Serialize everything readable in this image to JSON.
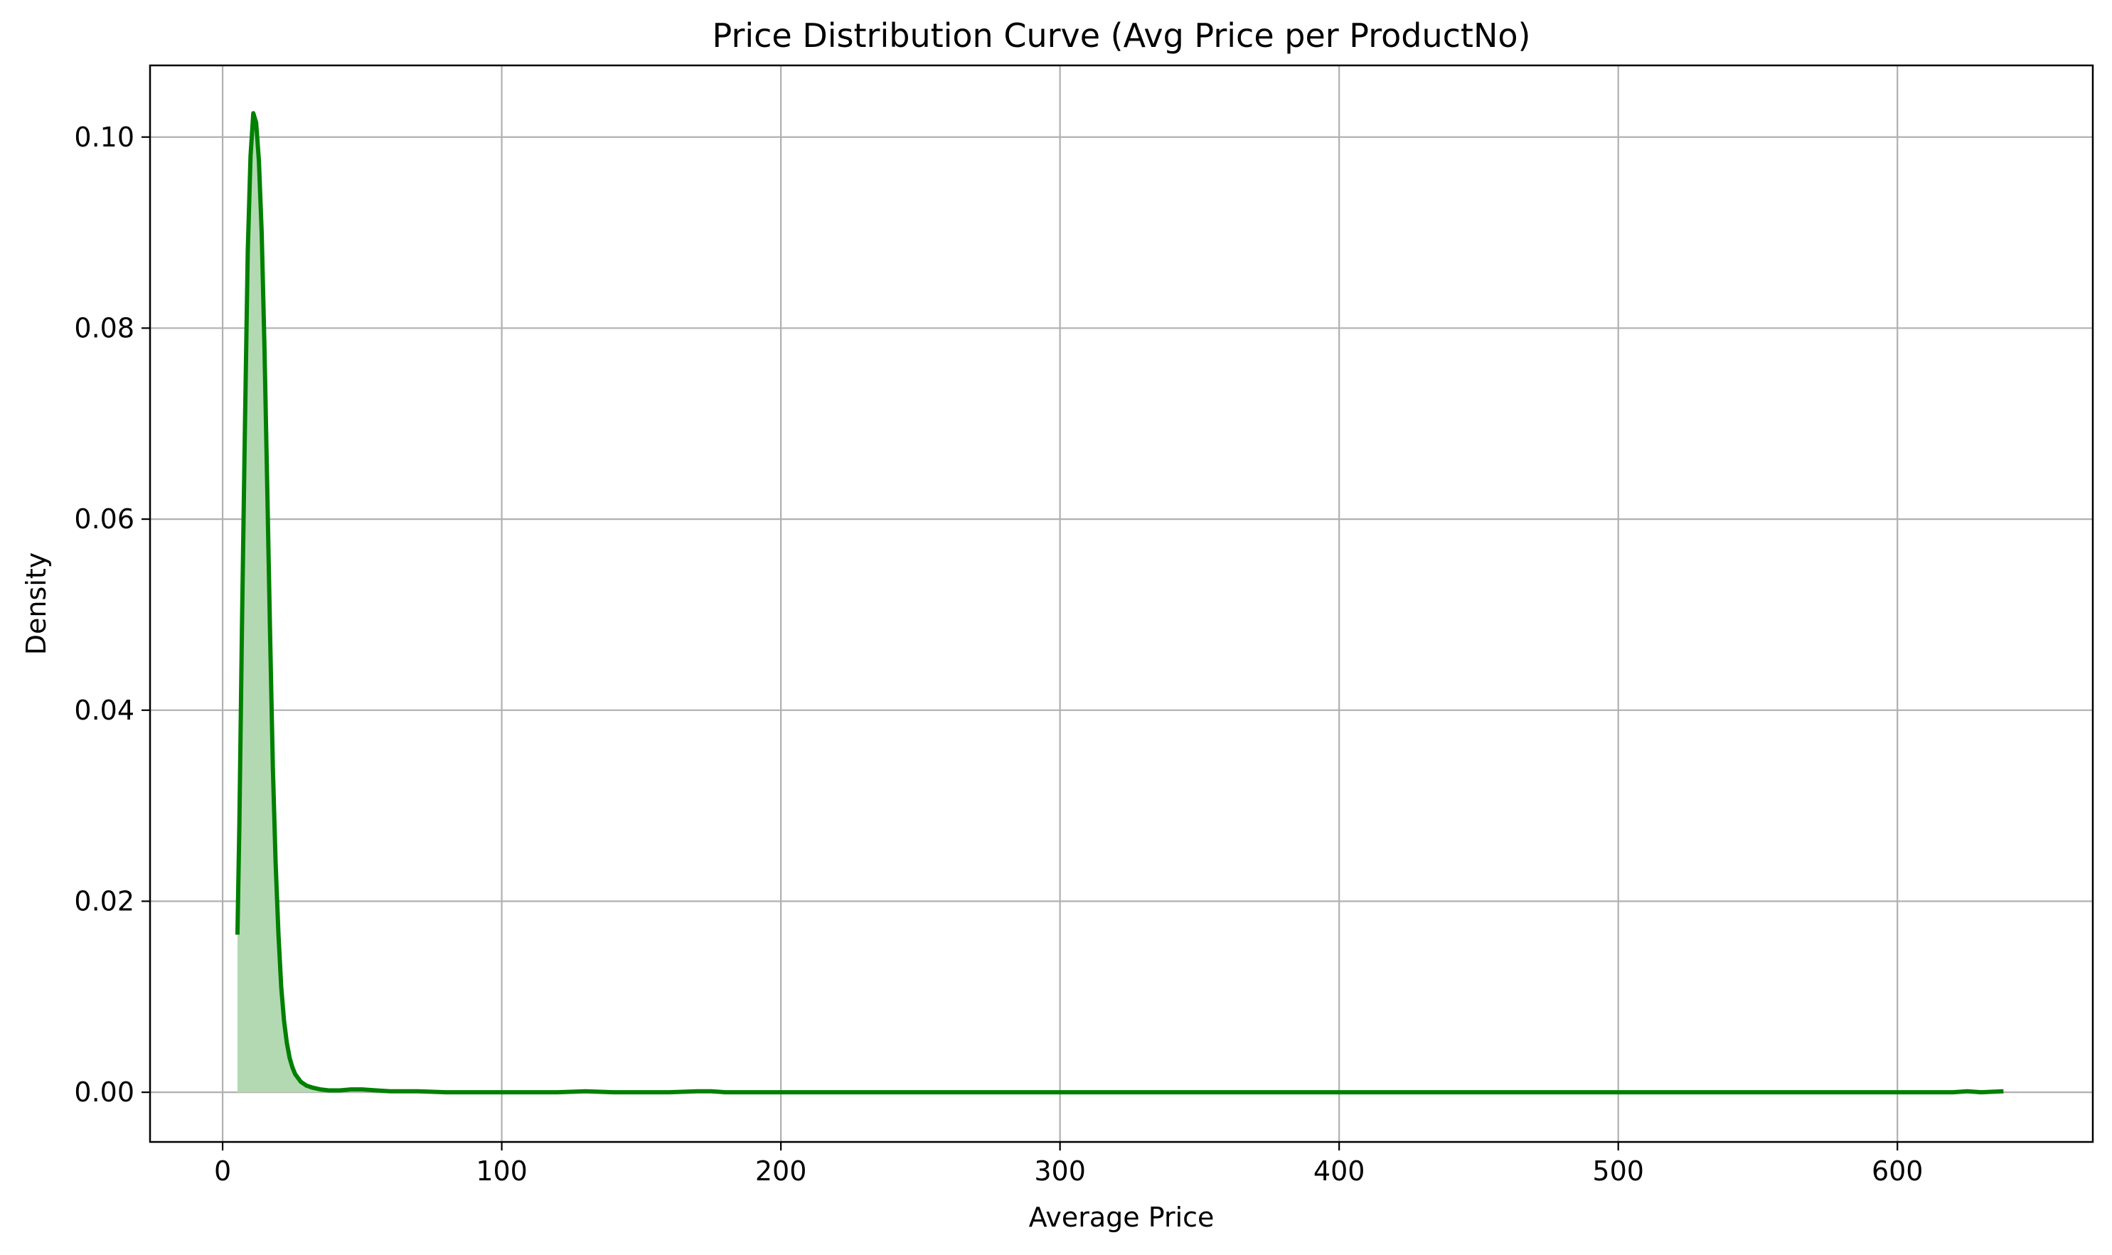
{
  "chart_data": {
    "type": "line",
    "title": "Price Distribution Curve (Avg Price per ProductNo)",
    "xlabel": "Average Price",
    "ylabel": "Density",
    "xlim": [
      -26,
      670
    ],
    "ylim": [
      -0.0052,
      0.1075
    ],
    "xticks": [
      0,
      100,
      200,
      300,
      400,
      500,
      600
    ],
    "xtick_labels": [
      "0",
      "100",
      "200",
      "300",
      "400",
      "500",
      "600"
    ],
    "yticks": [
      0.0,
      0.02,
      0.04,
      0.06,
      0.08,
      0.1
    ],
    "ytick_labels": [
      "0.00",
      "0.02",
      "0.04",
      "0.06",
      "0.08",
      "0.10"
    ],
    "grid": true,
    "fill_under_curve": true,
    "colors": {
      "line": "#008000",
      "fill": "#b3d9b3",
      "grid": "#b0b0b0"
    },
    "series": [
      {
        "x": [
          5.3,
          6,
          7,
          8,
          9,
          10,
          11,
          12,
          13,
          14,
          15,
          16,
          17,
          18,
          19,
          20,
          21,
          22,
          23,
          24,
          25,
          26,
          28,
          30,
          32,
          35,
          38,
          42,
          46,
          50,
          55,
          60,
          70,
          80,
          90,
          100,
          120,
          130,
          140,
          150,
          160,
          170,
          175,
          180,
          200,
          250,
          300,
          350,
          400,
          450,
          500,
          550,
          600,
          620,
          625,
          630,
          638
        ],
        "y": [
          0.0165,
          0.028,
          0.05,
          0.07,
          0.088,
          0.098,
          0.1025,
          0.1015,
          0.0975,
          0.09,
          0.078,
          0.063,
          0.048,
          0.034,
          0.024,
          0.0165,
          0.011,
          0.0075,
          0.0052,
          0.0036,
          0.0026,
          0.0019,
          0.0011,
          0.0007,
          0.0005,
          0.0003,
          0.0002,
          0.0002,
          0.0003,
          0.0003,
          0.0002,
          0.0001,
          0.0001,
          0.0,
          0.0,
          0.0,
          0.0,
          0.0001,
          0.0,
          0.0,
          0.0,
          0.0001,
          0.0001,
          0.0,
          0.0,
          0.0,
          0.0,
          0.0,
          0.0,
          0.0,
          0.0,
          0.0,
          0.0,
          0.0,
          0.0001,
          0.0,
          0.0001
        ]
      }
    ]
  }
}
